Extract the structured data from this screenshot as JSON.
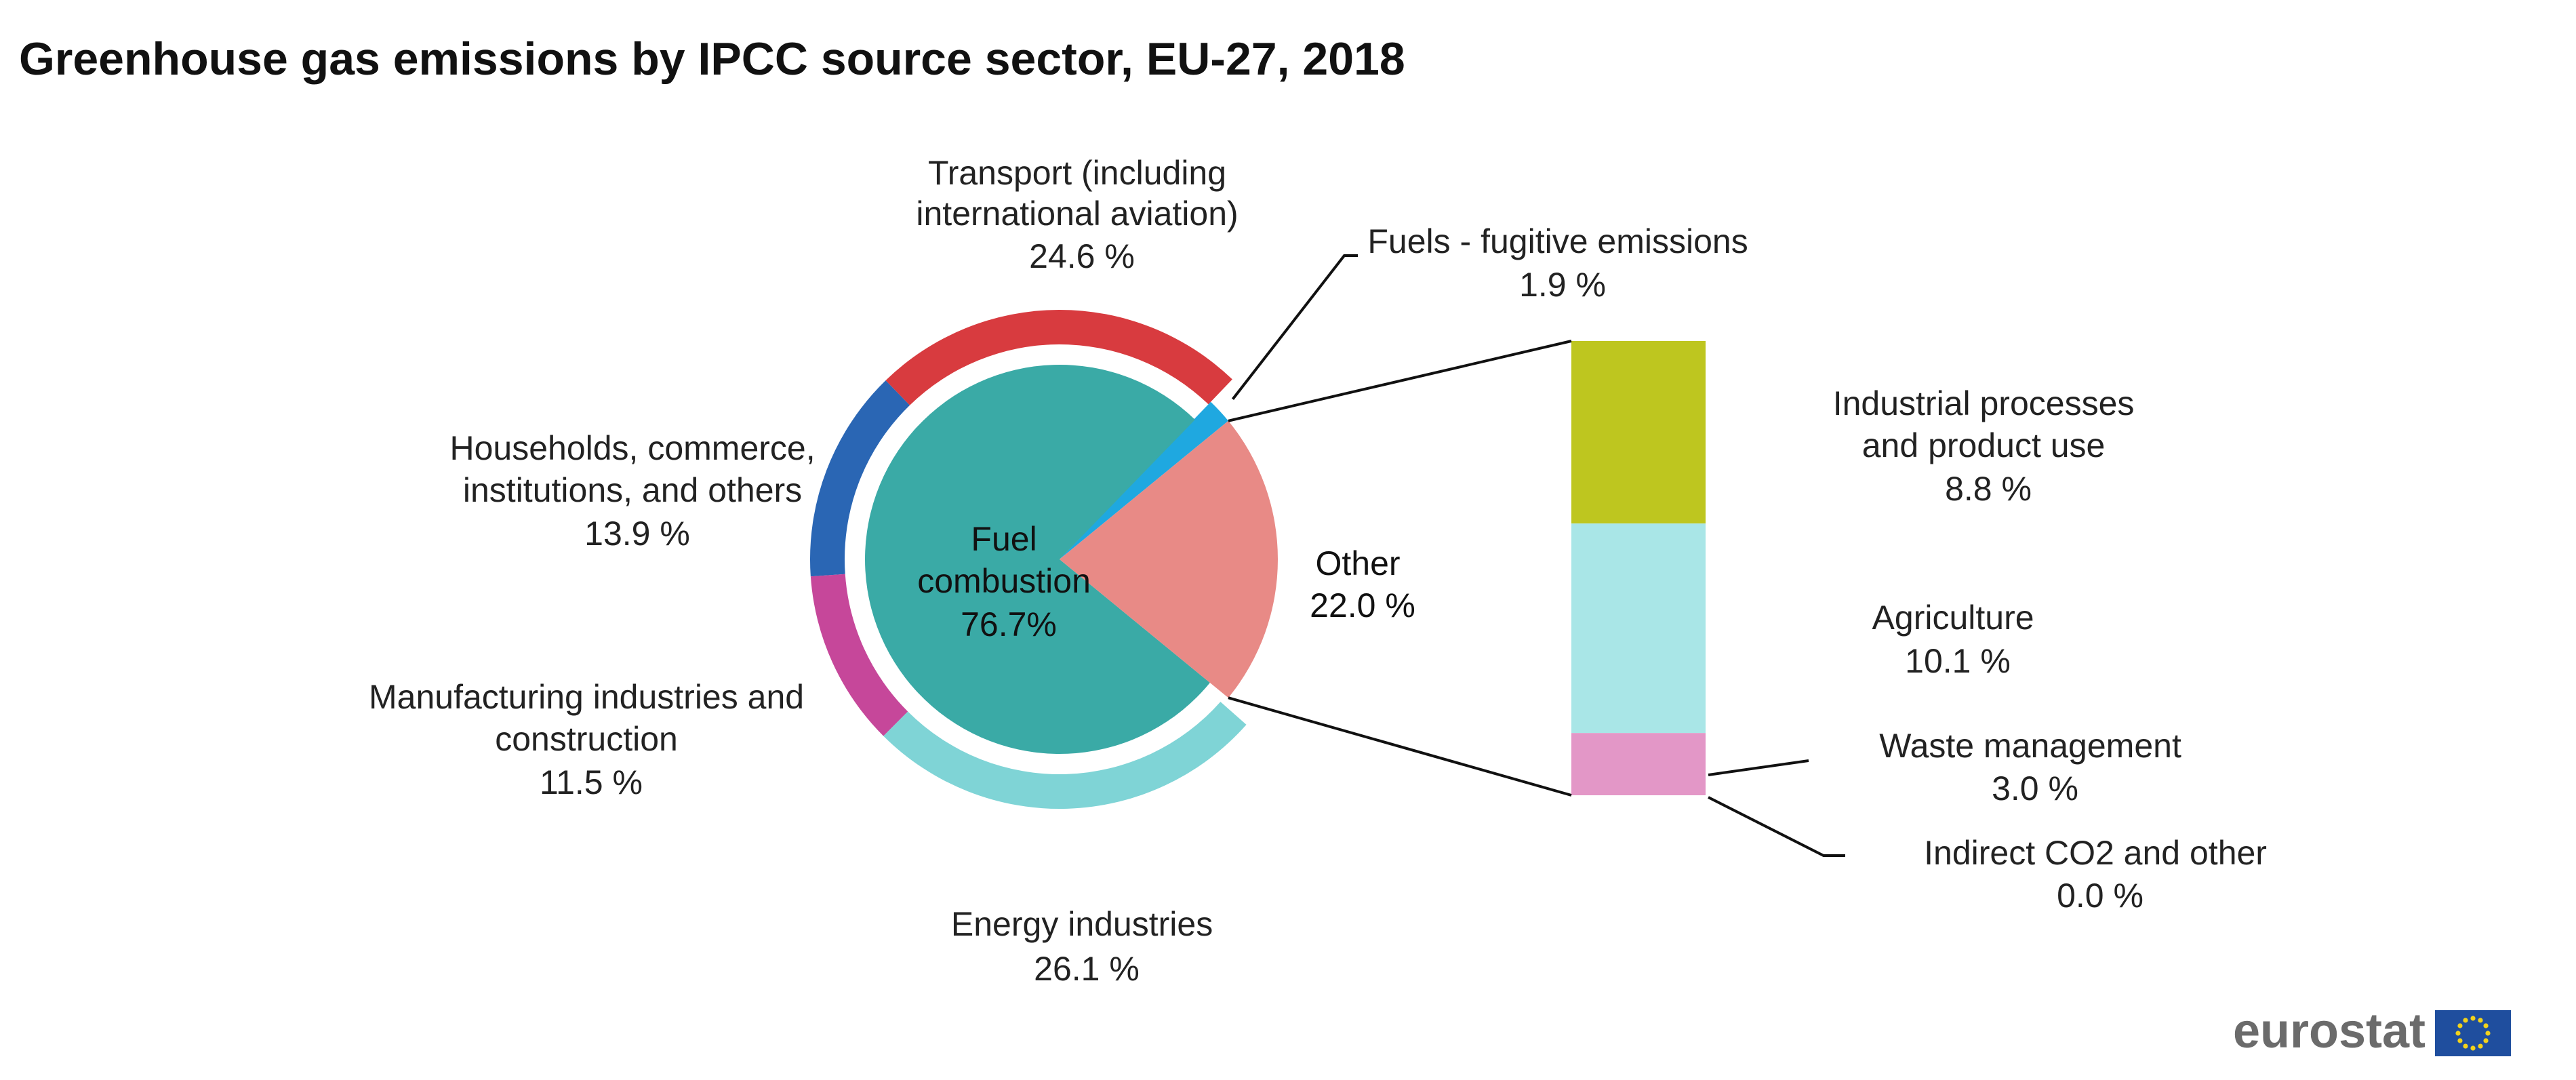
{
  "chart_data": {
    "type": "pie",
    "title": "Greenhouse gas emissions by IPCC source sector, EU-27, 2018",
    "inner": [
      {
        "name": "Fuel combustion",
        "value": 76.7,
        "value_label": "76.7%",
        "color": "#3aaaa6"
      },
      {
        "name": "Other",
        "value": 22.0,
        "value_label": "22.0 %",
        "color": "#e88a86"
      }
    ],
    "outer": [
      {
        "name": "Transport (including international aviation)",
        "value": 24.6,
        "value_label": "24.6 %",
        "color": "#d83b3f"
      },
      {
        "name": "Fuels - fugitive emissions",
        "value": 1.9,
        "value_label": "1.9 %",
        "color": "#1fa8e0"
      },
      {
        "name": "Energy industries",
        "value": 26.1,
        "value_label": "26.1 %",
        "color": "#7fd4d6"
      },
      {
        "name": "Manufacturing industries and construction",
        "value": 11.5,
        "value_label": "11.5 %",
        "color": "#c6479a"
      },
      {
        "name": "Households, commerce, institutions, and others",
        "value": 13.9,
        "value_label": "13.9 %",
        "color": "#2a66b4"
      }
    ],
    "breakdown": [
      {
        "name": "Industrial processes and product use",
        "value": 8.8,
        "value_label": "8.8 %",
        "color": "#bec61f"
      },
      {
        "name": "Agriculture",
        "value": 10.1,
        "value_label": "10.1 %",
        "color": "#a9e6e7"
      },
      {
        "name": "Waste management",
        "value": 3.0,
        "value_label": "3.0 %",
        "color": "#e397c7"
      },
      {
        "name": "Indirect CO2 and other",
        "value": 0.0,
        "value_label": "0.0 %",
        "color": "#d9d9d9"
      }
    ],
    "labels": {
      "transport": [
        "Transport (including",
        "international aviation)",
        "24.6 %"
      ],
      "fugitive": [
        "Fuels - fugitive emissions",
        "1.9 %"
      ],
      "households": [
        "Households, commerce,",
        "institutions, and others",
        "13.9 %"
      ],
      "manufacturing": [
        "Manufacturing industries and",
        "construction",
        "11.5 %"
      ],
      "energy": [
        "Energy industries",
        "26.1 %"
      ],
      "fuel": [
        "Fuel",
        "combustion",
        "76.7%"
      ],
      "other": [
        "Other",
        "22.0 %"
      ],
      "industrial": [
        "Industrial processes",
        "and product use",
        "8.8 %"
      ],
      "agriculture": [
        "Agriculture",
        "10.1 %"
      ],
      "waste": [
        "Waste management",
        "3.0 %"
      ],
      "indirect": [
        "Indirect CO2 and other",
        "0.0 %"
      ]
    }
  },
  "branding": {
    "logo_text": "eurostat",
    "flag_color": "#1f4e9e",
    "star_color": "#f2d21b"
  }
}
